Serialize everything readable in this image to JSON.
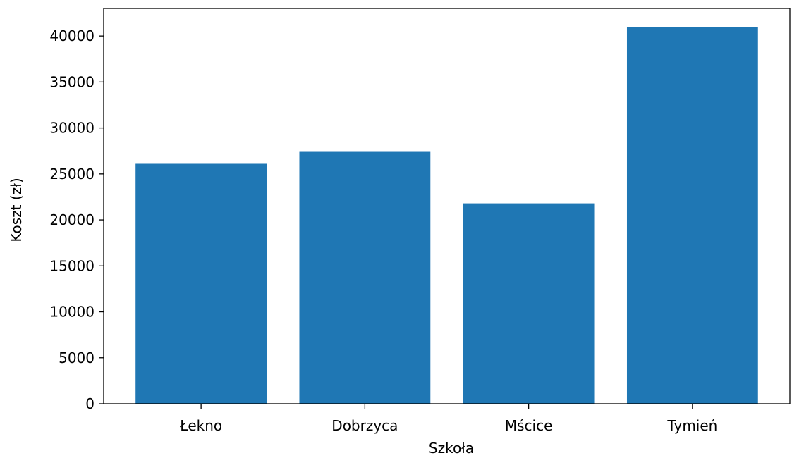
{
  "chart_data": {
    "type": "bar",
    "title": "",
    "xlabel": "Szkoła",
    "ylabel": "Koszt (zł)",
    "categories": [
      "Łekno",
      "Dobrzyca",
      "Mścice",
      "Tymień"
    ],
    "values": [
      26100,
      27400,
      21800,
      41000
    ],
    "ylim": [
      0,
      43000
    ],
    "yticks": [
      0,
      5000,
      10000,
      15000,
      20000,
      25000,
      30000,
      35000,
      40000
    ],
    "bar_color": "#1f77b4",
    "grid": false,
    "legend": "none"
  }
}
